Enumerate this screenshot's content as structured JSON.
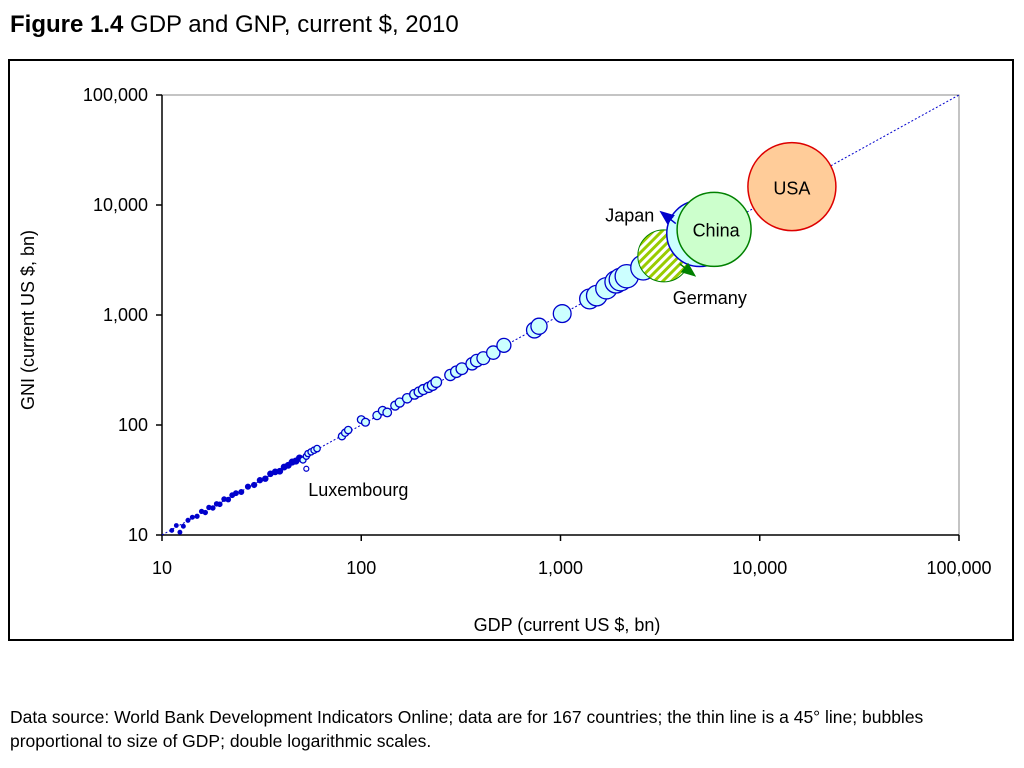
{
  "figure": {
    "number": "Figure 1.4",
    "title": "GDP and GNP, current $, 2010"
  },
  "source_note": "Data source: World Bank Development Indicators Online; data are for 167 countries; the thin line is a 45° line; bubbles proportional to size of GDP; double logarithmic scales.",
  "chart_data": {
    "type": "scatter",
    "subtype": "bubble",
    "xlabel": "GDP (current US $, bn)",
    "ylabel": "GNI (current US $, bn)",
    "x_scale": "log",
    "y_scale": "log",
    "xlim": [
      10,
      100000
    ],
    "ylim": [
      10,
      100000
    ],
    "x_ticks": [
      10,
      100,
      1000,
      10000,
      100000
    ],
    "y_ticks": [
      10,
      100,
      1000,
      10000,
      100000
    ],
    "x_tick_labels": [
      "10",
      "100",
      "1,000",
      "10,000",
      "100,000"
    ],
    "y_tick_labels": [
      "10",
      "100",
      "1,000",
      "10,000",
      "100,000"
    ],
    "grid": false,
    "reference_line": {
      "type": "45-degree",
      "style": "dotted",
      "color": "#0000cc"
    },
    "colors": {
      "bubble_stroke": "#0000cc",
      "bubble_fill": "#ccffff",
      "usa_fill": "#ffcc99",
      "usa_stroke": "#dd0000",
      "china_fill": "#ccffcc",
      "china_stroke": "#008000",
      "germany_stripe": "#99cc00",
      "japan_arrow": "#0000cc",
      "germany_arrow": "#008000"
    },
    "points": [
      [
        11.2,
        11.0
      ],
      [
        11.8,
        12.2
      ],
      [
        12.3,
        10.6
      ],
      [
        12.8,
        12.0
      ],
      [
        13.5,
        13.6
      ],
      [
        14.2,
        14.5
      ],
      [
        15.0,
        14.8
      ],
      [
        15.8,
        16.4
      ],
      [
        16.5,
        16.0
      ],
      [
        17.2,
        17.8
      ],
      [
        18.0,
        17.6
      ],
      [
        18.8,
        19.2
      ],
      [
        19.5,
        19.0
      ],
      [
        20.5,
        21.2
      ],
      [
        21.5,
        21.0
      ],
      [
        22.5,
        23.0
      ],
      [
        23.5,
        24.0
      ],
      [
        25.0,
        24.6
      ],
      [
        27.0,
        27.5
      ],
      [
        29.0,
        28.5
      ],
      [
        31.0,
        31.5
      ],
      [
        33.0,
        32.5
      ],
      [
        35.0,
        36.0
      ],
      [
        37.0,
        37.5
      ],
      [
        39.0,
        38.0
      ],
      [
        41.0,
        41.5
      ],
      [
        43.0,
        43.0
      ],
      [
        45.0,
        46.0
      ],
      [
        47.0,
        47.0
      ],
      [
        49.0,
        50.0
      ],
      [
        51.0,
        48.0
      ],
      [
        53.0,
        52.0
      ],
      [
        54.0,
        55.0
      ],
      [
        56.0,
        57.0
      ],
      [
        58.0,
        59.0
      ],
      [
        60.0,
        61.0
      ],
      [
        80.0,
        79.0
      ],
      [
        83.0,
        85.0
      ],
      [
        86.0,
        90.0
      ],
      [
        100.0,
        112.0
      ],
      [
        105.0,
        106.0
      ],
      [
        120.0,
        122.0
      ],
      [
        128.0,
        135.0
      ],
      [
        135.0,
        130.0
      ],
      [
        148.0,
        150.0
      ],
      [
        156.0,
        160.0
      ],
      [
        170.0,
        175.0
      ],
      [
        185.0,
        190.0
      ],
      [
        195.0,
        200.0
      ],
      [
        205.0,
        210.0
      ],
      [
        218.0,
        220.0
      ],
      [
        228.0,
        230.0
      ],
      [
        238.0,
        245.0
      ],
      [
        280.0,
        285.0
      ],
      [
        300.0,
        305.0
      ],
      [
        320.0,
        325.0
      ],
      [
        360.0,
        360.0
      ],
      [
        380.0,
        385.0
      ],
      [
        410.0,
        405.0
      ],
      [
        460.0,
        455.0
      ],
      [
        520.0,
        530.0
      ],
      [
        740.0,
        730.0
      ],
      [
        780.0,
        790.0
      ],
      [
        1020.0,
        1030.0
      ],
      [
        1400.0,
        1400.0
      ],
      [
        1520.0,
        1500.0
      ],
      [
        1700.0,
        1750.0
      ],
      [
        1900.0,
        2000.0
      ],
      [
        2000.0,
        2100.0
      ],
      [
        2150.0,
        2250.0
      ],
      [
        2600.0,
        2700.0
      ]
    ],
    "luxembourg": {
      "x": 53.0,
      "y": 40.0
    },
    "highlighted": [
      {
        "name": "USA",
        "x": 14500,
        "y": 14700,
        "r": 44
      },
      {
        "name": "China",
        "x": 5900,
        "y": 6000,
        "r": 37
      },
      {
        "name": "Japan",
        "x": 5000,
        "y": 5500,
        "r": 33
      },
      {
        "name": "Germany",
        "x": 3300,
        "y": 3450,
        "r": 26
      }
    ],
    "labels": {
      "usa": "USA",
      "china": "China",
      "japan": "Japan",
      "germany": "Germany",
      "luxembourg": "Luxembourg"
    }
  }
}
